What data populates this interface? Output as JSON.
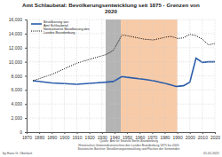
{
  "chart_data": {
    "type": "line",
    "title": "Amt Schlaubetal: Bevölkerungsentwicklung seit 1875 - Grenzen von 2020",
    "x": [
      1875,
      1890,
      1900,
      1910,
      1925,
      1933,
      1939,
      1946,
      1950,
      1964,
      1971,
      1981,
      1985,
      1989,
      1990,
      1995,
      2000,
      2005,
      2010,
      2015,
      2020
    ],
    "series": [
      {
        "name": "Bevölkerung von Amt Schlaubetal",
        "color": "#2a5caa",
        "line_style": "solid",
        "values": [
          7300,
          7000,
          6900,
          6800,
          7000,
          7100,
          7200,
          7900,
          7800,
          7500,
          7300,
          6900,
          6700,
          6500,
          6500,
          6600,
          7100,
          10500,
          9900,
          10000,
          10000
        ]
      },
      {
        "name": "Normalisierte Bevölkerung des Landes Brandenburg",
        "color": "#000000",
        "line_style": "dotted",
        "values": [
          7300,
          8200,
          9000,
          9800,
          10600,
          11000,
          11600,
          13800,
          13700,
          13200,
          13100,
          13500,
          13600,
          13400,
          13300,
          13400,
          13900,
          13700,
          13200,
          12400,
          12600
        ]
      }
    ],
    "shaded_ranges": [
      {
        "from": 1933,
        "to": 1945,
        "color": "#b4b4b4"
      },
      {
        "from": 1945,
        "to": 1990,
        "color": "#f8cba8"
      }
    ],
    "xlim": [
      1870,
      2020
    ],
    "xticks": [
      1870,
      1880,
      1890,
      1900,
      1910,
      1920,
      1930,
      1940,
      1950,
      1960,
      1970,
      1980,
      1990,
      2000,
      2010,
      2020
    ],
    "ylim": [
      0,
      16000
    ],
    "yticks": [
      0,
      {
        "value": 2000,
        "label": "2,000"
      },
      {
        "value": 4000,
        "label": "4,000"
      },
      {
        "value": 6000,
        "label": "6,000"
      },
      {
        "value": 8000,
        "label": "8,000"
      },
      {
        "value": 10000,
        "label": "10,000"
      },
      {
        "value": 12000,
        "label": "12,000"
      },
      {
        "value": 14000,
        "label": "14,000"
      },
      {
        "value": 16000,
        "label": "16,000"
      }
    ],
    "grid": true,
    "legend": "upper left",
    "sources": [
      "Quelle: Amt für Statistik Berlin-Brandenburg",
      "Historisches Gemeindeverzeichnis des Landes Brandenburg 1875 bis 2005",
      "Statistische Berichte: Bevölkerungsentwicklung und Flächen der Gemeinden"
    ],
    "author": "by Hans G. Oberlack",
    "date": "01.01.2021"
  }
}
